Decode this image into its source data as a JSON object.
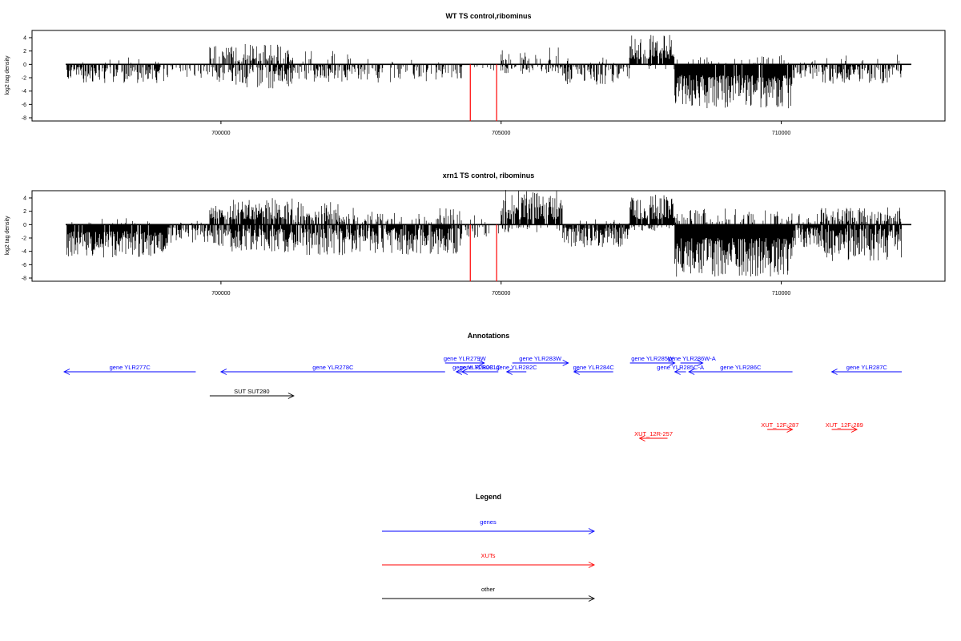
{
  "chart_data": [
    {
      "type": "bar",
      "title": "WT TS control,ribominus",
      "ylabel": "log2 tag density",
      "xlim": [
        697200,
        712350
      ],
      "ylim": [
        -8.5,
        5.5
      ],
      "yticks": [
        4,
        2,
        0,
        -2,
        -4,
        -6,
        -8
      ],
      "ytick_labels": [
        "4",
        "2",
        "0",
        "-2",
        "-4",
        "-6",
        "-8"
      ],
      "xticks": [
        700000,
        705000,
        710000
      ],
      "xtick_labels": [
        "700000",
        "705000",
        "710000"
      ],
      "highlight_color": "#ff0000",
      "bar_color": "#000000",
      "highlight_marks": [
        {
          "x": 704450,
          "value": -8.5
        },
        {
          "x": 704920,
          "value": -8.5
        }
      ],
      "regions": [
        {
          "start": 697250,
          "end": 699050,
          "p_up": 0.05,
          "up": [
            0.2,
            1.2
          ],
          "p_dn": 0.6,
          "dn": [
            0.4,
            2.8
          ]
        },
        {
          "start": 699050,
          "end": 699800,
          "p_up": 0.0,
          "up": [
            0.2,
            0.5
          ],
          "p_dn": 0.25,
          "dn": [
            0.3,
            2.0
          ]
        },
        {
          "start": 699800,
          "end": 700200,
          "p_up": 0.5,
          "up": [
            0.8,
            3.0
          ],
          "p_dn": 0.5,
          "dn": [
            0.4,
            2.6
          ]
        },
        {
          "start": 700200,
          "end": 701300,
          "p_up": 0.55,
          "up": [
            0.4,
            3.1
          ],
          "p_dn": 0.55,
          "dn": [
            0.4,
            3.6
          ]
        },
        {
          "start": 701300,
          "end": 702300,
          "p_up": 0.1,
          "up": [
            0.2,
            2.0
          ],
          "p_dn": 0.5,
          "dn": [
            0.3,
            2.6
          ]
        },
        {
          "start": 702300,
          "end": 704300,
          "p_up": 0.02,
          "up": [
            0.2,
            1.0
          ],
          "p_dn": 0.35,
          "dn": [
            0.3,
            2.8
          ]
        },
        {
          "start": 704300,
          "end": 705000,
          "p_up": 0.0,
          "up": [
            0.1,
            0.3
          ],
          "p_dn": 0.08,
          "dn": [
            0.2,
            1.0
          ]
        },
        {
          "start": 705000,
          "end": 706100,
          "p_up": 0.35,
          "up": [
            0.5,
            2.6
          ],
          "p_dn": 0.35,
          "dn": [
            0.3,
            1.4
          ]
        },
        {
          "start": 706100,
          "end": 707300,
          "p_up": 0.1,
          "up": [
            0.2,
            1.2
          ],
          "p_dn": 0.55,
          "dn": [
            0.3,
            3.1
          ]
        },
        {
          "start": 707300,
          "end": 708100,
          "p_up": 0.8,
          "up": [
            0.8,
            4.5
          ],
          "p_dn": 0.1,
          "dn": [
            0.2,
            0.8
          ]
        },
        {
          "start": 708100,
          "end": 710200,
          "p_up": 0.12,
          "up": [
            0.2,
            1.4
          ],
          "p_dn": 0.97,
          "dn": [
            1.6,
            6.6
          ]
        },
        {
          "start": 710200,
          "end": 710700,
          "p_up": 0.1,
          "up": [
            0.2,
            0.8
          ],
          "p_dn": 0.5,
          "dn": [
            0.3,
            2.5
          ]
        },
        {
          "start": 710700,
          "end": 712150,
          "p_up": 0.08,
          "up": [
            0.2,
            1.6
          ],
          "p_dn": 0.65,
          "dn": [
            0.3,
            3.0
          ]
        }
      ]
    },
    {
      "type": "bar",
      "title": "xrn1 TS control, ribominus",
      "ylabel": "log2 tag density",
      "xlim": [
        697200,
        712350
      ],
      "ylim": [
        -8.5,
        5.5
      ],
      "yticks": [
        4,
        2,
        0,
        -2,
        -4,
        -6,
        -8
      ],
      "ytick_labels": [
        "4",
        "2",
        "0",
        "-2",
        "-4",
        "-6",
        "-8"
      ],
      "xticks": [
        700000,
        705000,
        710000
      ],
      "xtick_labels": [
        "700000",
        "705000",
        "710000"
      ],
      "highlight_color": "#ff0000",
      "bar_color": "#000000",
      "highlight_marks": [
        {
          "x": 704450,
          "value": -8.5
        },
        {
          "x": 704920,
          "value": -8.5
        }
      ],
      "regions": [
        {
          "start": 697250,
          "end": 699050,
          "p_up": 0.05,
          "up": [
            0.2,
            1.0
          ],
          "p_dn": 0.95,
          "dn": [
            1.0,
            5.0
          ]
        },
        {
          "start": 699050,
          "end": 699800,
          "p_up": 0.05,
          "up": [
            0.2,
            0.6
          ],
          "p_dn": 0.6,
          "dn": [
            0.4,
            3.0
          ]
        },
        {
          "start": 699800,
          "end": 700200,
          "p_up": 0.75,
          "up": [
            0.8,
            3.0
          ],
          "p_dn": 0.7,
          "dn": [
            0.5,
            3.4
          ]
        },
        {
          "start": 700200,
          "end": 701300,
          "p_up": 0.85,
          "up": [
            0.8,
            4.0
          ],
          "p_dn": 0.85,
          "dn": [
            0.6,
            4.2
          ]
        },
        {
          "start": 701300,
          "end": 702300,
          "p_up": 0.5,
          "up": [
            0.4,
            3.6
          ],
          "p_dn": 0.85,
          "dn": [
            0.5,
            4.6
          ]
        },
        {
          "start": 702300,
          "end": 704300,
          "p_up": 0.3,
          "up": [
            0.3,
            2.5
          ],
          "p_dn": 0.85,
          "dn": [
            0.5,
            4.5
          ]
        },
        {
          "start": 704300,
          "end": 705000,
          "p_up": 0.15,
          "up": [
            0.2,
            1.5
          ],
          "p_dn": 0.3,
          "dn": [
            0.3,
            2.0
          ]
        },
        {
          "start": 705000,
          "end": 706100,
          "p_up": 0.85,
          "up": [
            0.8,
            5.2
          ],
          "p_dn": 0.2,
          "dn": [
            0.3,
            1.2
          ]
        },
        {
          "start": 706100,
          "end": 707300,
          "p_up": 0.05,
          "up": [
            0.2,
            0.8
          ],
          "p_dn": 0.8,
          "dn": [
            0.4,
            3.4
          ]
        },
        {
          "start": 707300,
          "end": 708100,
          "p_up": 0.9,
          "up": [
            0.8,
            4.6
          ],
          "p_dn": 0.2,
          "dn": [
            0.2,
            1.0
          ]
        },
        {
          "start": 708100,
          "end": 710200,
          "p_up": 0.3,
          "up": [
            0.3,
            2.4
          ],
          "p_dn": 0.98,
          "dn": [
            2.0,
            7.8
          ]
        },
        {
          "start": 710200,
          "end": 710700,
          "p_up": 0.3,
          "up": [
            0.3,
            1.8
          ],
          "p_dn": 0.85,
          "dn": [
            0.4,
            3.8
          ]
        },
        {
          "start": 710700,
          "end": 712150,
          "p_up": 0.6,
          "up": [
            0.4,
            2.6
          ],
          "p_dn": 0.9,
          "dn": [
            0.6,
            5.5
          ]
        }
      ]
    },
    {
      "type": "annotation-track",
      "title": "Annotations",
      "xlim": [
        697200,
        712350
      ],
      "colors": {
        "genes": "#0000ff",
        "XUTs": "#ff0000",
        "other": "#000000"
      },
      "features": [
        {
          "label": "gene YLR277C",
          "class": "genes",
          "start": 697200,
          "end": 699550,
          "strand": "-",
          "row": 0
        },
        {
          "label": "gene YLR278C",
          "class": "genes",
          "start": 700000,
          "end": 704000,
          "strand": "-",
          "row": 0
        },
        {
          "label": "gene YLR279W",
          "class": "genes",
          "start": 704000,
          "end": 704700,
          "strand": "+",
          "row": 1
        },
        {
          "label": "gene YLR280C",
          "class": "genes",
          "start": 704200,
          "end": 704800,
          "strand": "-",
          "row": 0
        },
        {
          "label": "gene YLR281C",
          "class": "genes",
          "start": 704300,
          "end": 704950,
          "strand": "-",
          "row": 0
        },
        {
          "label": "gene YLR282C",
          "class": "genes",
          "start": 705100,
          "end": 705450,
          "strand": "-",
          "row": 0
        },
        {
          "label": "gene YLR283W",
          "class": "genes",
          "start": 705200,
          "end": 706200,
          "strand": "+",
          "row": 1
        },
        {
          "label": "gene YLR284C",
          "class": "genes",
          "start": 706300,
          "end": 707000,
          "strand": "-",
          "row": 0
        },
        {
          "label": "gene YLR285W",
          "class": "genes",
          "start": 707300,
          "end": 708100,
          "strand": "+",
          "row": 1
        },
        {
          "label": "gene YLR285C-A",
          "class": "genes",
          "start": 708100,
          "end": 708300,
          "strand": "-",
          "row": 0
        },
        {
          "label": "gene YLR286W-A",
          "class": "genes",
          "start": 708200,
          "end": 708600,
          "strand": "+",
          "row": 1
        },
        {
          "label": "gene YLR286C",
          "class": "genes",
          "start": 708350,
          "end": 710200,
          "strand": "-",
          "row": 0
        },
        {
          "label": "gene YLR287C",
          "class": "genes",
          "start": 710900,
          "end": 712150,
          "strand": "-",
          "row": 0
        },
        {
          "label": "SUT SUT280",
          "class": "other",
          "start": 699800,
          "end": 701300,
          "strand": "+",
          "row": 2
        },
        {
          "label": "XUT_12R-257",
          "class": "XUTs",
          "start": 707470,
          "end": 707970,
          "strand": "-",
          "row": 4
        },
        {
          "label": "XUT_12F-287",
          "class": "XUTs",
          "start": 709750,
          "end": 710200,
          "strand": "+",
          "row": 3
        },
        {
          "label": "XUT_12F-289",
          "class": "XUTs",
          "start": 710900,
          "end": 711350,
          "strand": "+",
          "row": 3
        }
      ]
    },
    {
      "type": "legend",
      "title": "Legend",
      "entries": [
        {
          "label": "genes",
          "color": "#0000ff"
        },
        {
          "label": "XUTs",
          "color": "#ff0000"
        },
        {
          "label": "other",
          "color": "#000000"
        }
      ]
    }
  ]
}
